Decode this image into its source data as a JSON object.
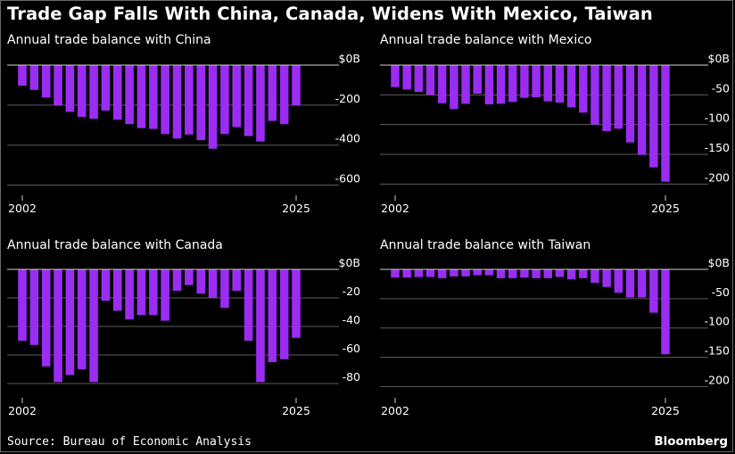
{
  "title": "Trade Gap Falls With China, Canada, Widens With Mexico, Taiwan",
  "source": "Source: Bureau of Economic Analysis",
  "brand": "Bloomberg",
  "colors": {
    "bar": "#9b2cf2",
    "grid": "#5e5e5e",
    "baseline": "#cfcfcf",
    "text": "#ffffff",
    "background": "#000000"
  },
  "chart_data": [
    {
      "type": "bar",
      "title": "Annual trade balance with China",
      "categories": [
        "2002",
        "2003",
        "2004",
        "2005",
        "2006",
        "2007",
        "2008",
        "2009",
        "2010",
        "2011",
        "2012",
        "2013",
        "2014",
        "2015",
        "2016",
        "2017",
        "2018",
        "2019",
        "2020",
        "2021",
        "2022",
        "2023",
        "2024",
        "2025"
      ],
      "values": [
        -103,
        -124,
        -162,
        -202,
        -234,
        -259,
        -268,
        -227,
        -273,
        -295,
        -315,
        -319,
        -345,
        -367,
        -347,
        -375,
        -418,
        -345,
        -310,
        -355,
        -382,
        -279,
        -295,
        -202
      ],
      "x_tick_labels": [
        "2002",
        "2025"
      ],
      "y_ticks": [
        0,
        -200,
        -400,
        -600
      ],
      "y_tick_labels": [
        "$0B",
        "-200",
        "-400",
        "-600"
      ],
      "ylim": [
        -660,
        0
      ],
      "xlabel": "",
      "ylabel": ""
    },
    {
      "type": "bar",
      "title": "Annual trade balance with Mexico",
      "categories": [
        "2002",
        "2003",
        "2004",
        "2005",
        "2006",
        "2007",
        "2008",
        "2009",
        "2010",
        "2011",
        "2012",
        "2013",
        "2014",
        "2015",
        "2016",
        "2017",
        "2018",
        "2019",
        "2020",
        "2021",
        "2022",
        "2023",
        "2024",
        "2025"
      ],
      "values": [
        -37,
        -41,
        -45,
        -50,
        -64,
        -74,
        -65,
        -48,
        -66,
        -65,
        -62,
        -55,
        -54,
        -61,
        -63,
        -71,
        -80,
        -100,
        -111,
        -107,
        -130,
        -151,
        -172,
        -196
      ],
      "x_tick_labels": [
        "2002",
        "2025"
      ],
      "y_ticks": [
        0,
        -50,
        -100,
        -150,
        -200
      ],
      "y_tick_labels": [
        "$0B",
        "-50",
        "-100",
        "-150",
        "-200"
      ],
      "ylim": [
        -210,
        0
      ],
      "xlabel": "",
      "ylabel": ""
    },
    {
      "type": "bar",
      "title": "Annual trade balance with Canada",
      "categories": [
        "2002",
        "2003",
        "2004",
        "2005",
        "2006",
        "2007",
        "2008",
        "2009",
        "2010",
        "2011",
        "2012",
        "2013",
        "2014",
        "2015",
        "2016",
        "2017",
        "2018",
        "2019",
        "2020",
        "2021",
        "2022",
        "2023",
        "2024",
        "2025"
      ],
      "values": [
        -50,
        -53,
        -68,
        -79,
        -74,
        -70,
        -79,
        -22,
        -29,
        -35,
        -32,
        -32,
        -36,
        -15,
        -11,
        -17,
        -20,
        -27,
        -15,
        -50,
        -79,
        -65,
        -63,
        -48
      ],
      "x_tick_labels": [
        "2002",
        "2025"
      ],
      "y_ticks": [
        0,
        -20,
        -40,
        -60,
        -80
      ],
      "y_tick_labels": [
        "$0B",
        "-20",
        "-40",
        "-60",
        "-80"
      ],
      "ylim": [
        -80,
        0
      ],
      "xlabel": "",
      "ylabel": ""
    },
    {
      "type": "bar",
      "title": "Annual trade balance with Taiwan",
      "categories": [
        "2002",
        "2003",
        "2004",
        "2005",
        "2006",
        "2007",
        "2008",
        "2009",
        "2010",
        "2011",
        "2012",
        "2013",
        "2014",
        "2015",
        "2016",
        "2017",
        "2018",
        "2019",
        "2020",
        "2021",
        "2022",
        "2023",
        "2024",
        "2025"
      ],
      "values": [
        -14,
        -14,
        -13,
        -13,
        -15,
        -12,
        -12,
        -10,
        -10,
        -15,
        -15,
        -14,
        -15,
        -15,
        -13,
        -17,
        -15,
        -23,
        -30,
        -40,
        -48,
        -48,
        -74,
        -145
      ],
      "x_tick_labels": [
        "2002",
        "2025"
      ],
      "y_ticks": [
        0,
        -50,
        -100,
        -150,
        -200
      ],
      "y_tick_labels": [
        "$0B",
        "-50",
        "-100",
        "-150",
        "-200"
      ],
      "ylim": [
        -210,
        0
      ],
      "xlabel": "",
      "ylabel": ""
    }
  ]
}
